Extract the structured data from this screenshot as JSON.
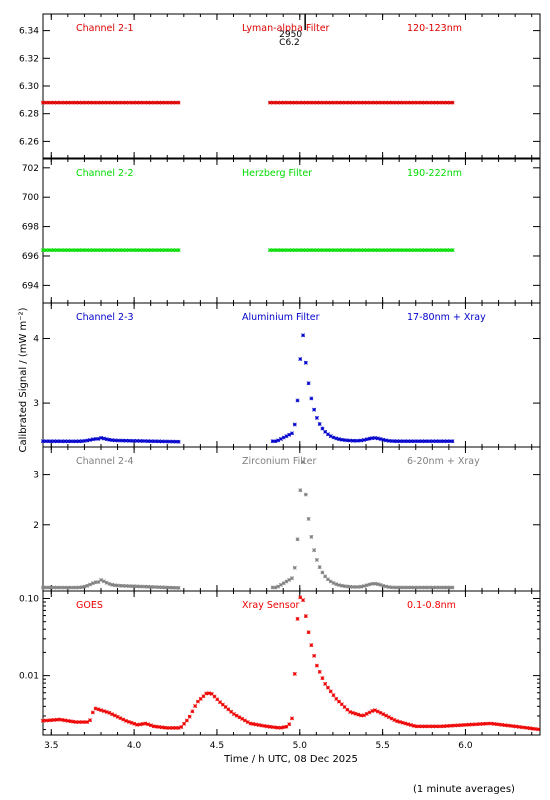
{
  "chart_data": [
    {
      "type": "scatter",
      "channel": "Channel 2-1",
      "filter": "Lyman-alpha Filter",
      "band": "120-123nm",
      "color": "#dd0000",
      "yticks": [
        6.26,
        6.28,
        6.3,
        6.32,
        6.34
      ],
      "ytick_labels": [
        "6.26",
        "6.28",
        "6.30",
        "6.32",
        "6.34"
      ],
      "ylim": [
        6.248,
        6.352
      ],
      "annotation": {
        "lines": [
          "2950",
          "C6.2"
        ],
        "x": 4.96
      },
      "segments": [
        {
          "x": [
            3.45,
            4.27
          ],
          "y": 6.288
        },
        {
          "x": [
            4.82,
            5.93
          ],
          "y": 6.288
        }
      ]
    },
    {
      "type": "scatter",
      "channel": "Channel 2-2",
      "filter": "Herzberg Filter",
      "band": "190-222nm",
      "color": "#00dd00",
      "yticks": [
        694,
        696,
        698,
        700,
        702
      ],
      "ytick_labels": [
        "694",
        "696",
        "698",
        "700",
        "702"
      ],
      "ylim": [
        692.8,
        702.6
      ],
      "segments": [
        {
          "x": [
            3.45,
            4.27
          ],
          "y": 696.4
        },
        {
          "x": [
            4.82,
            5.93
          ],
          "y": 696.4
        }
      ]
    },
    {
      "type": "scatter",
      "channel": "Channel 2-3",
      "filter": "Aluminium Filter",
      "band": "17-80nm + Xray",
      "color": "#0000cc",
      "yticks": [
        3,
        4
      ],
      "ytick_labels": [
        "3",
        "4"
      ],
      "ylim": [
        2.32,
        4.55
      ],
      "base": 2.41,
      "peak": 4.05,
      "bump": 0.05
    },
    {
      "type": "scatter",
      "channel": "Channel 2-4",
      "filter": "Zirconium Filter",
      "band": "6-20nm + Xray",
      "color": "#808080",
      "yticks": [
        2,
        3
      ],
      "ytick_labels": [
        "2",
        "3"
      ],
      "ylim": [
        0.68,
        3.55
      ],
      "base": 0.75,
      "peak": 3.25,
      "bump": 0.14
    },
    {
      "type": "scatter",
      "channel": "GOES",
      "filter": "Xray Sensor",
      "band": "0.1-0.8nm",
      "color": "#ee0000",
      "log_scale": true,
      "yticks": [
        0.01,
        0.1
      ],
      "ytick_labels": [
        "0.01",
        "0.10"
      ],
      "ylim": [
        0.0017,
        0.125
      ],
      "curve": [
        [
          3.45,
          0.0026
        ],
        [
          3.55,
          0.0027
        ],
        [
          3.65,
          0.0025
        ],
        [
          3.73,
          0.0025
        ],
        [
          3.76,
          0.0038
        ],
        [
          3.85,
          0.0033
        ],
        [
          3.95,
          0.0026
        ],
        [
          4.02,
          0.0023
        ],
        [
          4.07,
          0.0024
        ],
        [
          4.12,
          0.0022
        ],
        [
          4.2,
          0.0021
        ],
        [
          4.28,
          0.0021
        ],
        [
          4.33,
          0.0028
        ],
        [
          4.38,
          0.0045
        ],
        [
          4.44,
          0.006
        ],
        [
          4.47,
          0.0058
        ],
        [
          4.52,
          0.0045
        ],
        [
          4.6,
          0.0032
        ],
        [
          4.7,
          0.0024
        ],
        [
          4.8,
          0.0022
        ],
        [
          4.88,
          0.0021
        ],
        [
          4.93,
          0.0022
        ],
        [
          4.96,
          0.003
        ],
        [
          4.98,
          0.04
        ],
        [
          5.0,
          0.105
        ],
        [
          5.02,
          0.095
        ],
        [
          5.06,
          0.03
        ],
        [
          5.1,
          0.014
        ],
        [
          5.15,
          0.008
        ],
        [
          5.22,
          0.005
        ],
        [
          5.3,
          0.0034
        ],
        [
          5.38,
          0.003
        ],
        [
          5.45,
          0.0036
        ],
        [
          5.5,
          0.0032
        ],
        [
          5.58,
          0.0026
        ],
        [
          5.7,
          0.0022
        ],
        [
          5.85,
          0.0022
        ],
        [
          6.0,
          0.0023
        ],
        [
          6.15,
          0.0024
        ],
        [
          6.3,
          0.0022
        ],
        [
          6.45,
          0.002
        ]
      ]
    }
  ],
  "xaxis": {
    "range": [
      3.45,
      6.45
    ],
    "ticks": [
      3.5,
      4.0,
      4.5,
      5.0,
      5.5,
      6.0
    ],
    "tick_labels": [
      "3.5",
      "4.0",
      "4.5",
      "5.0",
      "5.5",
      "6.0"
    ],
    "label": "Time / h UTC, 08 Dec 2025"
  },
  "ylabel": "Calibrated Signal / (mW m⁻²)",
  "footnote": "(1 minute averages)"
}
